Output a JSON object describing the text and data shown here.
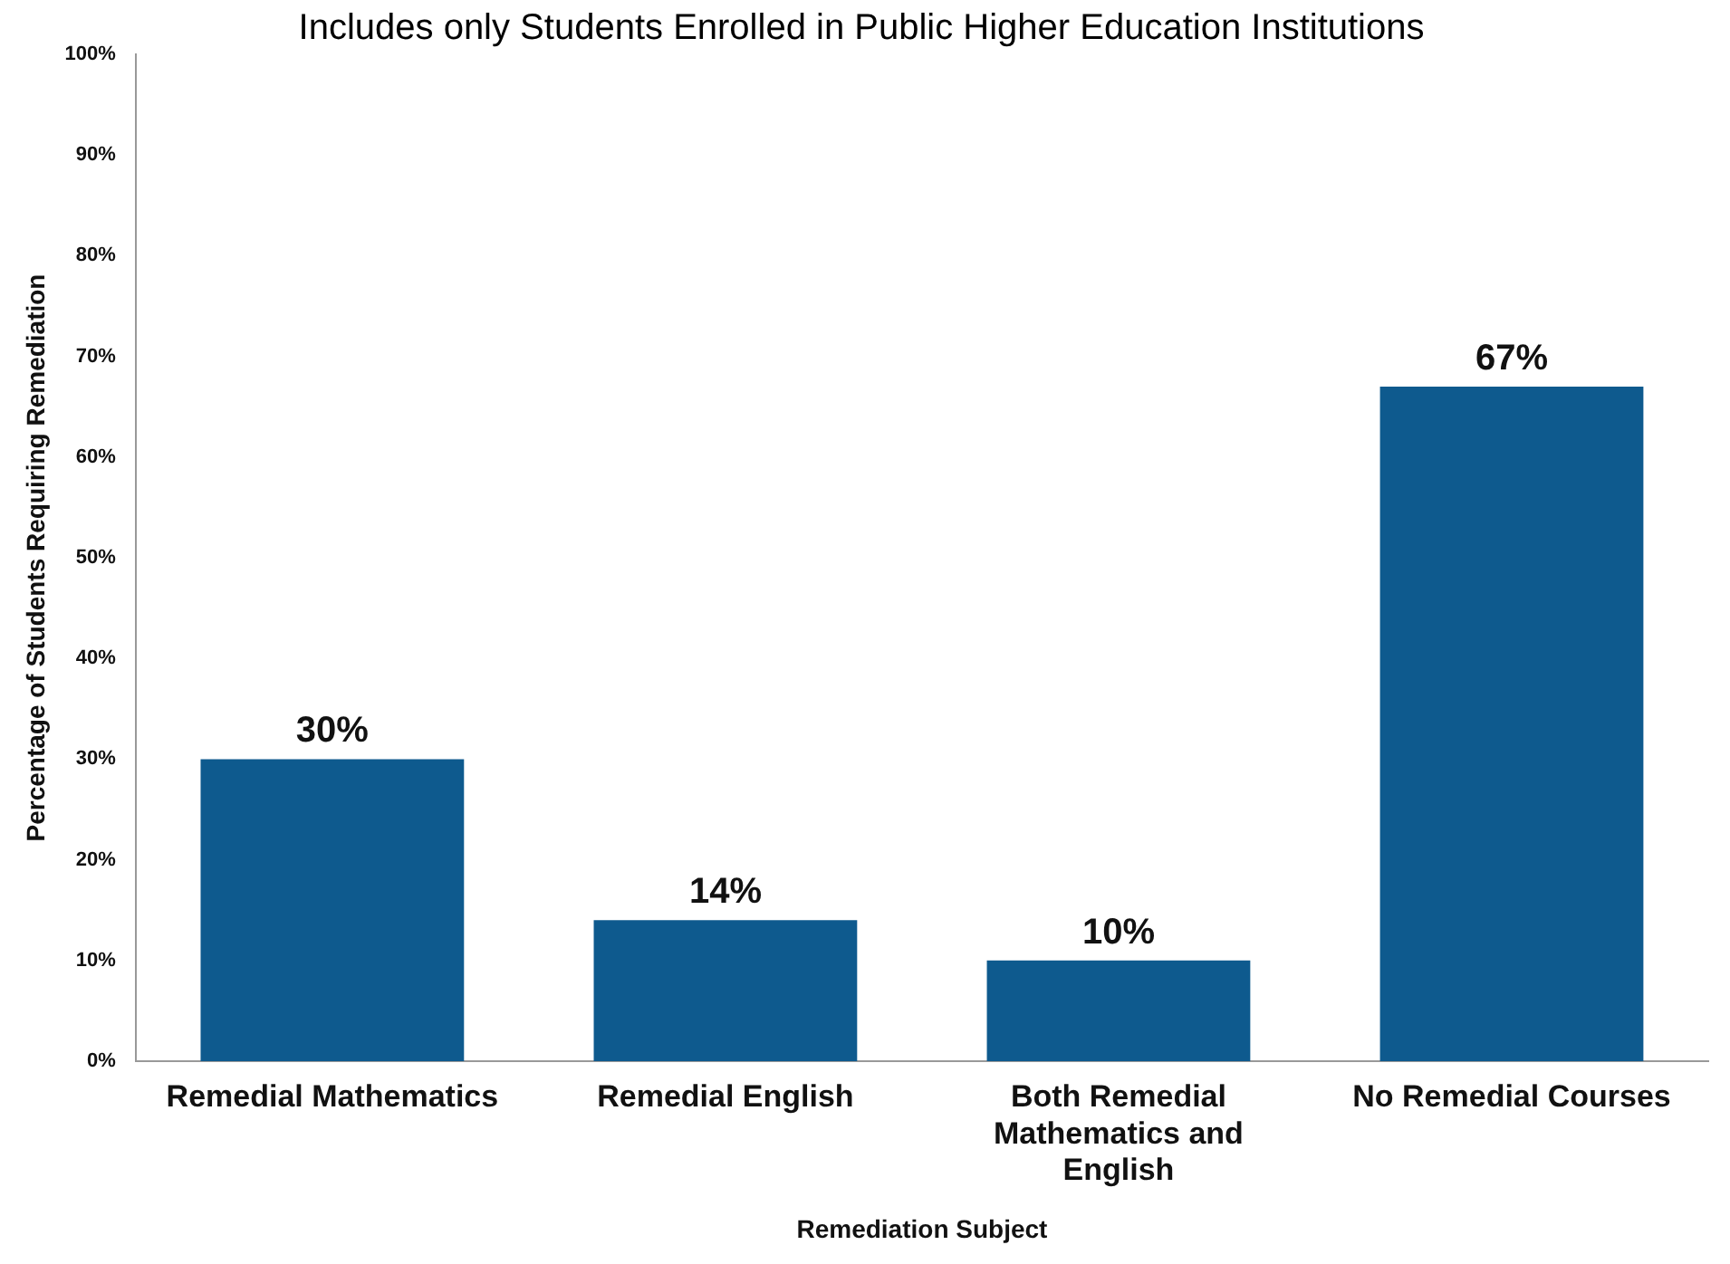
{
  "chart_data": {
    "type": "bar",
    "title": "Includes only Students Enrolled in Public Higher Education Institutions",
    "xlabel": "Remediation Subject",
    "ylabel": "Percentage of Students Requiring Remediation",
    "categories": [
      "Remedial Mathematics",
      "Remedial English",
      "Both Remedial Mathematics and English",
      "No Remedial Courses"
    ],
    "values": [
      30,
      14,
      10,
      67
    ],
    "value_labels": [
      "30%",
      "14%",
      "10%",
      "67%"
    ],
    "color": "#0e5a8e",
    "ylim": [
      0,
      100
    ],
    "yticks": [
      {
        "value": 0,
        "label": "0%"
      },
      {
        "value": 10,
        "label": "10%"
      },
      {
        "value": 20,
        "label": "20%"
      },
      {
        "value": 30,
        "label": "30%"
      },
      {
        "value": 40,
        "label": "40%"
      },
      {
        "value": 50,
        "label": "50%"
      },
      {
        "value": 60,
        "label": "60%"
      },
      {
        "value": 70,
        "label": "70%"
      },
      {
        "value": 80,
        "label": "80%"
      },
      {
        "value": 90,
        "label": "90%"
      },
      {
        "value": 100,
        "label": "100%"
      }
    ],
    "grid": false,
    "legend": false
  }
}
